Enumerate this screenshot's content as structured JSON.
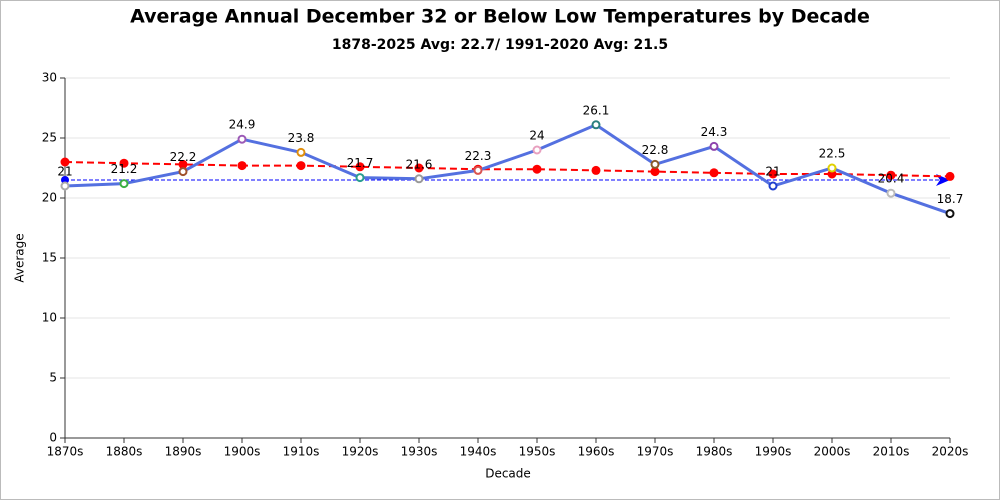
{
  "chart_data": {
    "type": "line",
    "title": "Average Annual December 32 or Below Low Temperatures by Decade",
    "subtitle": "1878-2025 Avg: 22.7/ 1991-2020 Avg: 21.5",
    "x_label": "Decade",
    "y_label": "Average",
    "categories": [
      "1870s",
      "1880s",
      "1890s",
      "1900s",
      "1910s",
      "1920s",
      "1930s",
      "1940s",
      "1950s",
      "1960s",
      "1970s",
      "1980s",
      "1990s",
      "2000s",
      "2010s",
      "2020s"
    ],
    "series": [
      {
        "color": "#5470e0",
        "style": "solid",
        "data_labels": true,
        "marker_colors": [
          "#aaaaaa",
          "#3cb043",
          "#a0522d",
          "#9b59b6",
          "#e08e0b",
          "#2a9d8f",
          "#999999",
          "#d9534f",
          "#e8a0bf",
          "#2a7f7f",
          "#8b5a2b",
          "#8e44ad",
          "#1f3fcf",
          "#e0d000",
          "#bbbbbb",
          "#111111"
        ],
        "values": [
          21,
          21.2,
          22.2,
          24.9,
          23.8,
          21.7,
          21.6,
          22.3,
          24,
          26.1,
          22.8,
          24.3,
          21,
          22.5,
          20.4,
          18.7
        ]
      },
      {
        "color": "#ff0000",
        "style": "dashed",
        "data_labels": false,
        "values": [
          23.0,
          22.9,
          22.8,
          22.7,
          22.7,
          22.6,
          22.5,
          22.4,
          22.4,
          22.3,
          22.2,
          22.1,
          22.0,
          22.0,
          21.9,
          21.8
        ]
      }
    ],
    "reference_line": {
      "value": 21.5,
      "color": "#0000ff"
    },
    "ylim": [
      0,
      30
    ],
    "yticks": [
      0,
      5,
      10,
      15,
      20,
      25,
      30
    ],
    "grid": true
  }
}
